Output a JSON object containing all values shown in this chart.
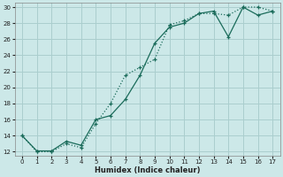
{
  "xlabel": "Humidex (Indice chaleur)",
  "bg_color": "#cce8e8",
  "line_color": "#1a6b5a",
  "grid_color": "#aacece",
  "xlim_min": -0.5,
  "xlim_max": 17.5,
  "ylim_min": 11.5,
  "ylim_max": 30.5,
  "xticks": [
    0,
    1,
    2,
    3,
    4,
    5,
    6,
    7,
    8,
    9,
    10,
    11,
    12,
    13,
    14,
    15,
    16,
    17
  ],
  "yticks": [
    12,
    14,
    16,
    18,
    20,
    22,
    24,
    26,
    28,
    30
  ],
  "curve1_x": [
    0,
    1,
    2,
    3,
    4,
    5,
    6,
    7,
    8,
    9,
    10,
    11,
    12,
    13,
    14,
    15,
    16,
    17
  ],
  "curve1_y": [
    14,
    12,
    12,
    13,
    12.5,
    15.5,
    18,
    21.5,
    22.5,
    23.5,
    27.8,
    28.3,
    29.2,
    29.2,
    29.0,
    30.0,
    30.0,
    29.5
  ],
  "curve2_x": [
    0,
    1,
    2,
    3,
    4,
    5,
    6,
    7,
    8,
    9,
    10,
    11,
    12,
    13,
    14,
    15,
    16,
    17
  ],
  "curve2_y": [
    14,
    12.1,
    12.1,
    13.3,
    12.8,
    16.0,
    16.5,
    18.5,
    21.5,
    25.5,
    27.5,
    28.0,
    29.2,
    29.5,
    26.3,
    30.0,
    29.0,
    29.5
  ]
}
